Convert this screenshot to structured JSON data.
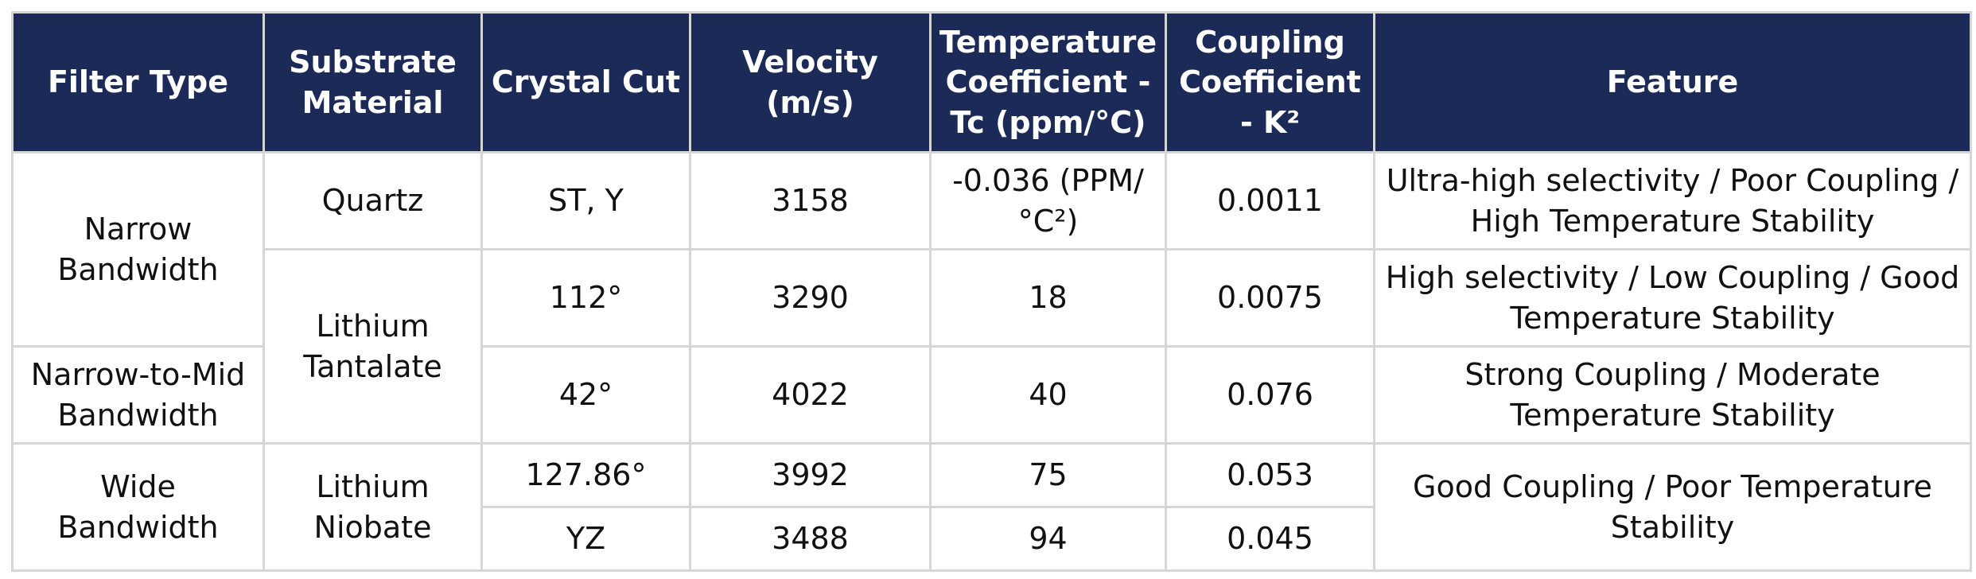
{
  "table": {
    "headers": [
      "Filter Type",
      "Substrate Material",
      "Crystal Cut",
      "Velocity (m/s)",
      "Temperature Coefficient - Tc (ppm/°C)",
      "Coupling Coefficient - K²",
      "Feature"
    ],
    "filter_types": {
      "narrow": "Narrow Bandwidth",
      "narrow_mid": "Narrow-to-Mid Bandwidth",
      "wide": "Wide Bandwidth"
    },
    "substrates": {
      "quartz": "Quartz",
      "lithium_tantalate": "Lithium Tantalate",
      "lithium_niobate": "Lithium Niobate"
    },
    "rows": [
      {
        "crystal_cut": "ST, Y",
        "velocity": "3158",
        "tc": "-0.036 (PPM/°C²)",
        "coupling": "0.0011",
        "feature": "Ultra-high selectivity / Poor Coupling / High Temperature Stability"
      },
      {
        "crystal_cut": "112°",
        "velocity": "3290",
        "tc": "18",
        "coupling": "0.0075",
        "feature": "High selectivity / Low Coupling / Good Temperature Stability"
      },
      {
        "crystal_cut": "42°",
        "velocity": "4022",
        "tc": "40",
        "coupling": "0.076",
        "feature": "Strong Coupling / Moderate Temperature Stability"
      },
      {
        "crystal_cut": "127.86°",
        "velocity": "3992",
        "tc": "75",
        "coupling": "0.053",
        "feature": "Good Coupling / Poor Temperature Stability"
      },
      {
        "crystal_cut": "YZ",
        "velocity": "3488",
        "tc": "94",
        "coupling": "0.045",
        "feature": ""
      }
    ]
  },
  "colors": {
    "header_bg": "#1b2a57",
    "header_text": "#ffffff",
    "grid": "#d6d6d6"
  }
}
